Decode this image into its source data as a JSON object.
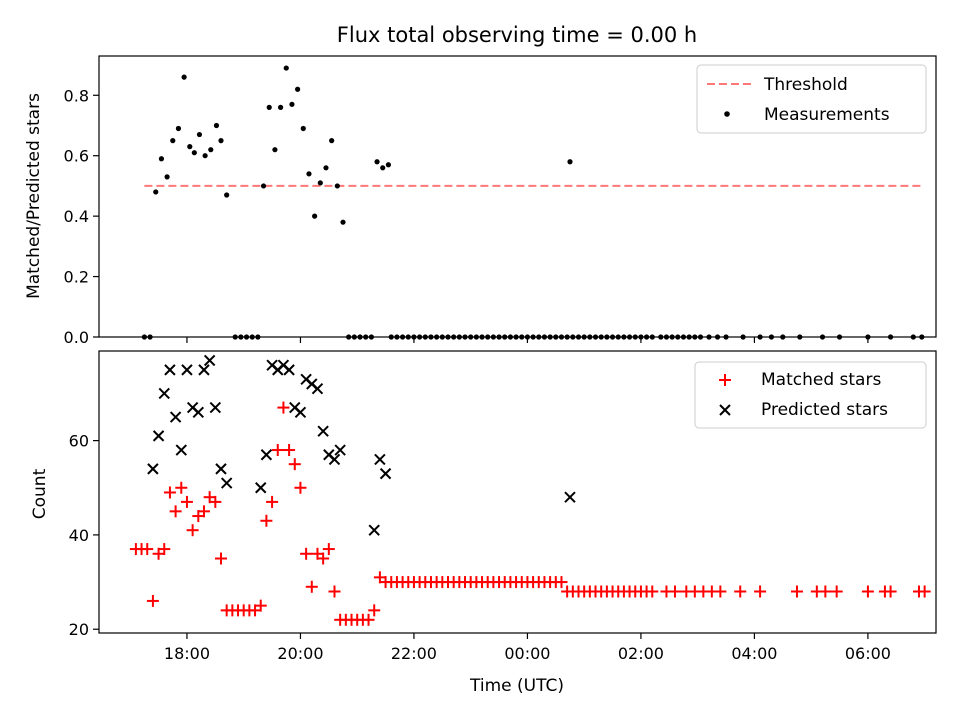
{
  "chart_data": [
    {
      "type": "scatter",
      "title": "Flux total observing time = 0.00 h",
      "ylabel": "Matched/Predicted stars",
      "xlabel": "",
      "ylim": [
        0,
        0.93
      ],
      "yticks": [
        "0.0",
        "0.2",
        "0.4",
        "0.6",
        "0.8"
      ],
      "ytick_values": [
        0,
        0.2,
        0.4,
        0.6,
        0.8
      ],
      "threshold": {
        "name": "Threshold",
        "value": 0.5,
        "x_start": -0.75,
        "x_end": 12.95,
        "color": "#ff7777"
      },
      "series": [
        {
          "name": "Measurements",
          "color": "#000000",
          "marker": "dot",
          "points": [
            [
              -0.75,
              0
            ],
            [
              -0.65,
              0
            ],
            [
              -0.55,
              0.48
            ],
            [
              -0.45,
              0.59
            ],
            [
              -0.35,
              0.53
            ],
            [
              -0.25,
              0.65
            ],
            [
              -0.15,
              0.69
            ],
            [
              -0.05,
              0.86
            ],
            [
              0.05,
              0.63
            ],
            [
              0.13,
              0.61
            ],
            [
              0.22,
              0.67
            ],
            [
              0.32,
              0.6
            ],
            [
              0.42,
              0.62
            ],
            [
              0.52,
              0.7
            ],
            [
              0.6,
              0.65
            ],
            [
              0.7,
              0.47
            ],
            [
              0.85,
              0
            ],
            [
              0.95,
              0
            ],
            [
              1.05,
              0
            ],
            [
              1.15,
              0
            ],
            [
              1.25,
              0
            ],
            [
              1.35,
              0.5
            ],
            [
              1.45,
              0.76
            ],
            [
              1.55,
              0.62
            ],
            [
              1.65,
              0.76
            ],
            [
              1.75,
              0.89
            ],
            [
              1.85,
              0.77
            ],
            [
              1.95,
              0.82
            ],
            [
              2.05,
              0.69
            ],
            [
              2.15,
              0.54
            ],
            [
              2.25,
              0.4
            ],
            [
              2.35,
              0.51
            ],
            [
              2.45,
              0.56
            ],
            [
              2.55,
              0.65
            ],
            [
              2.65,
              0.5
            ],
            [
              2.75,
              0.38
            ],
            [
              2.85,
              0
            ],
            [
              2.95,
              0
            ],
            [
              3.05,
              0
            ],
            [
              3.15,
              0
            ],
            [
              3.25,
              0
            ],
            [
              3.35,
              0.58
            ],
            [
              3.45,
              0.56
            ],
            [
              3.55,
              0.57
            ],
            [
              3.6,
              0
            ],
            [
              3.7,
              0
            ],
            [
              3.8,
              0
            ],
            [
              3.9,
              0
            ],
            [
              4.0,
              0
            ],
            [
              4.1,
              0
            ],
            [
              4.2,
              0
            ],
            [
              4.3,
              0
            ],
            [
              4.4,
              0
            ],
            [
              4.5,
              0
            ],
            [
              4.6,
              0
            ],
            [
              4.7,
              0
            ],
            [
              4.8,
              0
            ],
            [
              4.9,
              0
            ],
            [
              5.0,
              0
            ],
            [
              5.1,
              0
            ],
            [
              5.2,
              0
            ],
            [
              5.3,
              0
            ],
            [
              5.4,
              0
            ],
            [
              5.5,
              0
            ],
            [
              5.6,
              0
            ],
            [
              5.7,
              0
            ],
            [
              5.8,
              0
            ],
            [
              5.9,
              0
            ],
            [
              6.0,
              0
            ],
            [
              6.1,
              0
            ],
            [
              6.2,
              0
            ],
            [
              6.3,
              0
            ],
            [
              6.4,
              0
            ],
            [
              6.5,
              0
            ],
            [
              6.6,
              0
            ],
            [
              6.7,
              0
            ],
            [
              6.75,
              0.58
            ],
            [
              6.8,
              0
            ],
            [
              6.9,
              0
            ],
            [
              7.0,
              0
            ],
            [
              7.1,
              0
            ],
            [
              7.2,
              0
            ],
            [
              7.3,
              0
            ],
            [
              7.4,
              0
            ],
            [
              7.5,
              0
            ],
            [
              7.6,
              0
            ],
            [
              7.7,
              0
            ],
            [
              7.8,
              0
            ],
            [
              7.9,
              0
            ],
            [
              8.0,
              0
            ],
            [
              8.1,
              0
            ],
            [
              8.2,
              0
            ],
            [
              8.35,
              0
            ],
            [
              8.45,
              0
            ],
            [
              8.55,
              0
            ],
            [
              8.65,
              0
            ],
            [
              8.75,
              0
            ],
            [
              8.85,
              0
            ],
            [
              8.95,
              0
            ],
            [
              9.05,
              0
            ],
            [
              9.2,
              0
            ],
            [
              9.35,
              0
            ],
            [
              9.5,
              0
            ],
            [
              9.8,
              0
            ],
            [
              10.1,
              0
            ],
            [
              10.3,
              0
            ],
            [
              10.5,
              0
            ],
            [
              10.8,
              0
            ],
            [
              11.2,
              0
            ],
            [
              11.5,
              0
            ],
            [
              12.0,
              0
            ],
            [
              12.4,
              0
            ],
            [
              12.8,
              0
            ],
            [
              12.95,
              0
            ]
          ]
        }
      ]
    },
    {
      "type": "scatter",
      "title": "",
      "xlabel": "Time (UTC)",
      "ylabel": "Count",
      "ylim": [
        19.2,
        79
      ],
      "yticks": [
        "20",
        "40",
        "60"
      ],
      "ytick_values": [
        20,
        40,
        60
      ],
      "xlim": [
        -1.55,
        13.2
      ],
      "xticks": [
        "18:00",
        "20:00",
        "22:00",
        "00:00",
        "02:00",
        "04:00",
        "06:00"
      ],
      "xtick_values": [
        0,
        2,
        4,
        6,
        8,
        10,
        12
      ],
      "x_unit": "hours after 18:00 UTC",
      "series": [
        {
          "name": "Matched stars",
          "color": "#ff0000",
          "marker": "plus",
          "points": [
            [
              -0.9,
              37
            ],
            [
              -0.8,
              37
            ],
            [
              -0.7,
              37
            ],
            [
              -0.6,
              26
            ],
            [
              -0.5,
              36
            ],
            [
              -0.4,
              37
            ],
            [
              -0.3,
              49
            ],
            [
              -0.2,
              45
            ],
            [
              -0.1,
              50
            ],
            [
              0.0,
              47
            ],
            [
              0.1,
              41
            ],
            [
              0.2,
              44
            ],
            [
              0.3,
              45
            ],
            [
              0.4,
              48
            ],
            [
              0.5,
              47
            ],
            [
              0.6,
              35
            ],
            [
              0.7,
              24
            ],
            [
              0.8,
              24
            ],
            [
              0.9,
              24
            ],
            [
              1.0,
              24
            ],
            [
              1.1,
              24
            ],
            [
              1.2,
              24
            ],
            [
              1.3,
              25
            ],
            [
              1.4,
              43
            ],
            [
              1.5,
              47
            ],
            [
              1.6,
              58
            ],
            [
              1.7,
              67
            ],
            [
              1.8,
              58
            ],
            [
              1.9,
              55
            ],
            [
              2.0,
              50
            ],
            [
              2.1,
              36
            ],
            [
              2.2,
              29
            ],
            [
              2.3,
              36
            ],
            [
              2.4,
              35
            ],
            [
              2.5,
              37
            ],
            [
              2.6,
              28
            ],
            [
              2.7,
              22
            ],
            [
              2.8,
              22
            ],
            [
              2.9,
              22
            ],
            [
              3.0,
              22
            ],
            [
              3.1,
              22
            ],
            [
              3.2,
              22
            ],
            [
              3.3,
              24
            ],
            [
              3.4,
              31
            ],
            [
              3.5,
              30
            ],
            [
              3.6,
              30
            ],
            [
              3.7,
              30
            ],
            [
              3.8,
              30
            ],
            [
              3.9,
              30
            ],
            [
              4.0,
              30
            ],
            [
              4.1,
              30
            ],
            [
              4.2,
              30
            ],
            [
              4.3,
              30
            ],
            [
              4.4,
              30
            ],
            [
              4.5,
              30
            ],
            [
              4.6,
              30
            ],
            [
              4.7,
              30
            ],
            [
              4.8,
              30
            ],
            [
              4.9,
              30
            ],
            [
              5.0,
              30
            ],
            [
              5.1,
              30
            ],
            [
              5.2,
              30
            ],
            [
              5.3,
              30
            ],
            [
              5.4,
              30
            ],
            [
              5.5,
              30
            ],
            [
              5.6,
              30
            ],
            [
              5.7,
              30
            ],
            [
              5.8,
              30
            ],
            [
              5.9,
              30
            ],
            [
              6.0,
              30
            ],
            [
              6.1,
              30
            ],
            [
              6.2,
              30
            ],
            [
              6.3,
              30
            ],
            [
              6.4,
              30
            ],
            [
              6.5,
              30
            ],
            [
              6.6,
              30
            ],
            [
              6.7,
              28
            ],
            [
              6.8,
              28
            ],
            [
              6.9,
              28
            ],
            [
              7.0,
              28
            ],
            [
              7.1,
              28
            ],
            [
              7.2,
              28
            ],
            [
              7.3,
              28
            ],
            [
              7.4,
              28
            ],
            [
              7.5,
              28
            ],
            [
              7.6,
              28
            ],
            [
              7.7,
              28
            ],
            [
              7.8,
              28
            ],
            [
              7.9,
              28
            ],
            [
              8.0,
              28
            ],
            [
              8.1,
              28
            ],
            [
              8.2,
              28
            ],
            [
              8.45,
              28
            ],
            [
              8.6,
              28
            ],
            [
              8.8,
              28
            ],
            [
              8.95,
              28
            ],
            [
              9.1,
              28
            ],
            [
              9.25,
              28
            ],
            [
              9.4,
              28
            ],
            [
              9.75,
              28
            ],
            [
              10.1,
              28
            ],
            [
              10.75,
              28
            ],
            [
              11.1,
              28
            ],
            [
              11.25,
              28
            ],
            [
              11.45,
              28
            ],
            [
              12.0,
              28
            ],
            [
              12.3,
              28
            ],
            [
              12.4,
              28
            ],
            [
              12.9,
              28
            ],
            [
              13.0,
              28
            ]
          ]
        },
        {
          "name": "Predicted stars",
          "color": "#000000",
          "marker": "x",
          "points": [
            [
              -0.6,
              54
            ],
            [
              -0.5,
              61
            ],
            [
              -0.4,
              70
            ],
            [
              -0.3,
              75
            ],
            [
              -0.2,
              65
            ],
            [
              -0.1,
              58
            ],
            [
              0.0,
              75
            ],
            [
              0.1,
              67
            ],
            [
              0.2,
              66
            ],
            [
              0.3,
              75
            ],
            [
              0.4,
              77
            ],
            [
              0.5,
              67
            ],
            [
              0.6,
              54
            ],
            [
              0.7,
              51
            ],
            [
              1.3,
              50
            ],
            [
              1.4,
              57
            ],
            [
              1.5,
              76
            ],
            [
              1.6,
              75
            ],
            [
              1.7,
              76
            ],
            [
              1.8,
              75
            ],
            [
              1.9,
              67
            ],
            [
              2.0,
              66
            ],
            [
              2.1,
              73
            ],
            [
              2.2,
              72
            ],
            [
              2.3,
              71
            ],
            [
              2.4,
              62
            ],
            [
              2.5,
              57
            ],
            [
              2.6,
              56
            ],
            [
              2.7,
              58
            ],
            [
              3.3,
              41
            ],
            [
              3.4,
              56
            ],
            [
              3.5,
              53
            ],
            [
              6.75,
              48
            ]
          ]
        }
      ]
    }
  ]
}
